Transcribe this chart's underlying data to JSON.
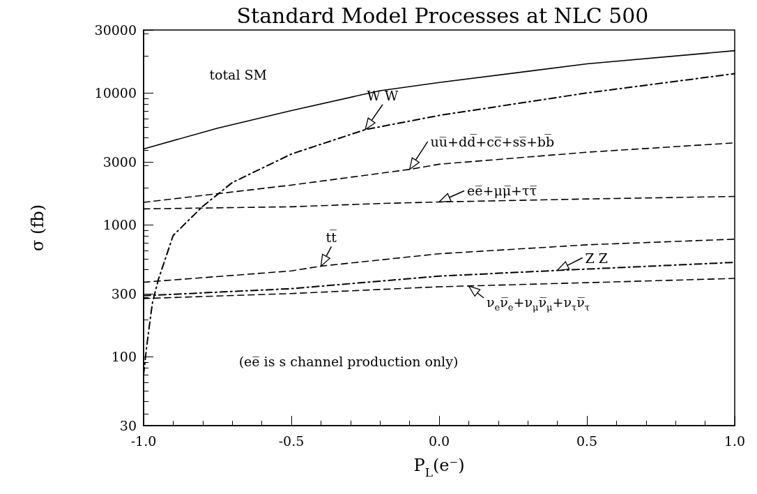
{
  "chart_data": {
    "type": "line",
    "title": "Standard Model Processes at NLC 500",
    "xlabel": "P$_{L}$(e⁻)",
    "ylabel": "σ (fb)",
    "log": "y",
    "grid": false,
    "legend": false,
    "marker": "none",
    "xlim": [
      -1,
      1
    ],
    "xticks": [
      {
        "value": -1,
        "label": "-1.0"
      },
      {
        "value": -0.5,
        "label": "-0.5"
      },
      {
        "value": 0,
        "label": "0.0"
      },
      {
        "value": 0.5,
        "label": "0.5"
      },
      {
        "value": 1,
        "label": "1.0"
      }
    ],
    "ylim": [
      30,
      30000
    ],
    "yticks": [
      30,
      100,
      300,
      1000,
      3000,
      10000,
      30000
    ],
    "series": [
      {
        "color": "#000000",
        "line_style": "solid",
        "x": [
          -1,
          -0.75,
          -0.5,
          -0.2,
          0,
          0.5,
          1
        ],
        "values": [
          3760,
          5400,
          7350,
          10400,
          12000,
          16600,
          20900
        ]
      },
      {
        "color": "#000000",
        "line_style": "dashdot",
        "x": [
          -1,
          -0.99,
          -0.98,
          -0.97,
          -0.95,
          -0.9,
          -0.8,
          -0.7,
          -0.5,
          -0.25,
          0,
          0.5,
          1
        ],
        "values": [
          73,
          117,
          175,
          257,
          385,
          830,
          1380,
          2090,
          3440,
          5270,
          6750,
          10000,
          14000
        ]
      },
      {
        "color": "#000000",
        "line_style": "dashed",
        "x": [
          -1,
          -0.5,
          -0.1,
          0,
          0.5,
          1
        ],
        "values": [
          1480,
          2000,
          2630,
          2880,
          3550,
          4180
        ]
      },
      {
        "color": "#000000",
        "line_style": "dashed",
        "x": [
          -1,
          -0.5,
          -0.2,
          0,
          0.5,
          1
        ],
        "values": [
          1320,
          1370,
          1450,
          1490,
          1570,
          1640
        ]
      },
      {
        "color": "#000000",
        "line_style": "dashed",
        "x": [
          -1,
          -0.5,
          -0.4,
          0,
          0.5,
          1
        ],
        "values": [
          367,
          447,
          486,
          603,
          705,
          778
        ]
      },
      {
        "color": "#000000",
        "line_style": "dashdot",
        "x": [
          -1,
          -0.5,
          0,
          0.4,
          1
        ],
        "values": [
          290,
          328,
          408,
          451,
          519
        ]
      },
      {
        "color": "#000000",
        "line_style": "dashed",
        "x": [
          -1,
          -0.5,
          0,
          0.5,
          1
        ],
        "values": [
          276,
          301,
          339,
          364,
          392
        ]
      }
    ],
    "annotations": [
      {
        "text": "total SM",
        "x": -0.5,
        "y": 7350
      },
      {
        "text": "W W",
        "x": -0.25,
        "y": 5270
      },
      {
        "text": "uu̅+dd̅+cc̅+ss̅+bb̅",
        "x": -0.1,
        "y": 2630
      },
      {
        "text": "ee̅+μμ̅+ττ̅",
        "x": 0,
        "y": 1490
      },
      {
        "text": "tt̅",
        "x": -0.4,
        "y": 486
      },
      {
        "text": "Z Z",
        "x": 0.4,
        "y": 451
      },
      "ν$_{e}$ν̅$_{e}$+ν$_{μ}$ν̅$_{μ}$+ν$_{τ}$ν̅$_{τ}$",
      "(ee̅ is s channel production only)"
    ]
  }
}
